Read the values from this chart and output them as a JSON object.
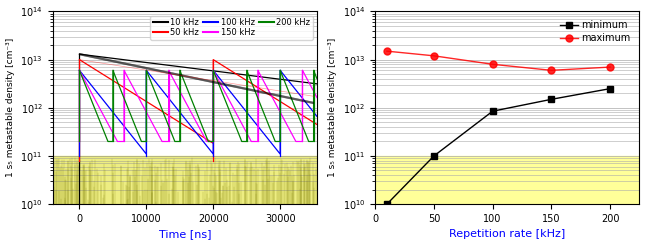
{
  "left": {
    "ylabel": "1 s₅ metastable density [cm⁻³]",
    "xlabel": "Time [ns]",
    "ylim_log": [
      10000000000.0,
      100000000000000.0
    ],
    "xlim": [
      -4000,
      35500
    ],
    "xticks": [
      0,
      10000,
      20000,
      30000
    ],
    "yellow_band": [
      10000000000.0,
      100000000000.0
    ],
    "legend_entries": [
      "10 kHz",
      "50 kHz",
      "100 kHz",
      "150 kHz",
      "200 kHz"
    ],
    "colors": [
      "black",
      "red",
      "blue",
      "magenta",
      "green"
    ],
    "freqs_khz": [
      10,
      50,
      100,
      150,
      200
    ],
    "peak_density": [
      13000000000000.0,
      10000000000000.0,
      6000000000000.0,
      6000000000000.0,
      6000000000000.0
    ],
    "min_density_floor": [
      10000000000.0,
      80000000000.0,
      100000000000.0,
      200000000000.0,
      200000000000.0
    ],
    "noise_color": "#888800",
    "yellow_color": "#ffff99",
    "grid_color": "#aaaaaa"
  },
  "right": {
    "ylabel": "1 s₅ metastable density [cm⁻³]",
    "xlabel": "Repetition rate [kHz]",
    "ylim_log": [
      10000000000.0,
      100000000000000.0
    ],
    "xlim": [
      0,
      225
    ],
    "xticks": [
      0,
      50,
      100,
      150,
      200
    ],
    "yellow_band": [
      10000000000.0,
      100000000000.0
    ],
    "yellow_color": "#ffff99",
    "grid_color": "#aaaaaa",
    "min_data_x": [
      10,
      50,
      100,
      150,
      200
    ],
    "min_data_y": [
      10000000000.0,
      100000000000.0,
      850000000000.0,
      1500000000000.0,
      2500000000000.0
    ],
    "max_data_x": [
      10,
      50,
      100,
      150,
      200
    ],
    "max_data_y": [
      15000000000000.0,
      12000000000000.0,
      8000000000000.0,
      6000000000000.0,
      7000000000000.0
    ],
    "min_color": "black",
    "max_color": "red",
    "min_marker": "s",
    "max_marker": "o",
    "min_label": "minimum",
    "max_label": "maximum"
  },
  "fig_width": 6.45,
  "fig_height": 2.45,
  "dpi": 100
}
